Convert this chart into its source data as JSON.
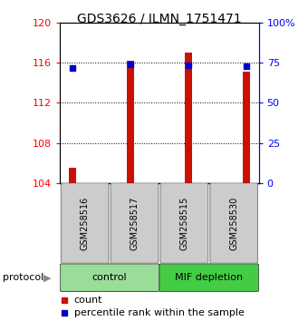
{
  "title": "GDS3626 / ILMN_1751471",
  "samples": [
    "GSM258516",
    "GSM258517",
    "GSM258515",
    "GSM258530"
  ],
  "red_bar_values": [
    105.5,
    116.2,
    117.0,
    115.1
  ],
  "blue_marker_values": [
    115.5,
    115.85,
    115.75,
    115.6
  ],
  "ylim_left": [
    104,
    120
  ],
  "ylim_right": [
    0,
    100
  ],
  "yticks_left": [
    104,
    108,
    112,
    116,
    120
  ],
  "yticks_right": [
    0,
    25,
    50,
    75,
    100
  ],
  "ytick_labels_right": [
    "0",
    "25",
    "50",
    "75",
    "100%"
  ],
  "bar_color": "#cc1100",
  "marker_color": "#0000cc",
  "bar_width": 0.12,
  "groups": [
    {
      "label": "control",
      "samples": [
        0,
        1
      ],
      "color": "#99dd99"
    },
    {
      "label": "MIF depletion",
      "samples": [
        2,
        3
      ],
      "color": "#44cc44"
    }
  ],
  "protocol_label": "protocol",
  "legend_items": [
    {
      "color": "#cc1100",
      "label": "count"
    },
    {
      "color": "#0000cc",
      "label": "percentile rank within the sample"
    }
  ],
  "sample_box_color": "#cccccc",
  "background_color": "#ffffff"
}
